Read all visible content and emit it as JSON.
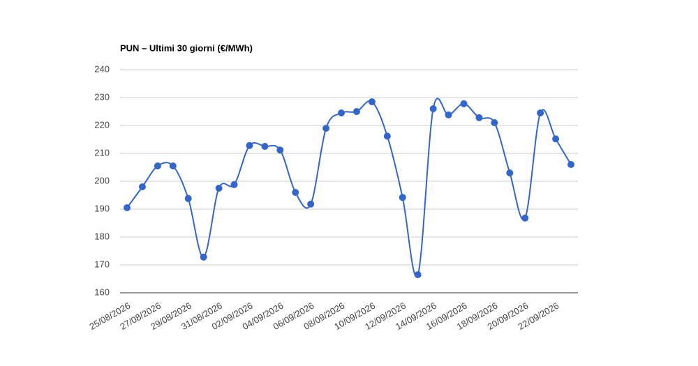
{
  "chart_data": {
    "type": "line",
    "title": "PUN – Ultimi 30 giorni (€/MWh)",
    "categories": [
      "25/08/2026",
      null,
      "27/08/2026",
      null,
      "29/08/2026",
      null,
      "31/08/2026",
      null,
      "02/09/2026",
      null,
      "04/09/2026",
      null,
      "06/09/2026",
      null,
      "08/09/2026",
      null,
      "10/09/2026",
      null,
      "12/09/2026",
      null,
      "14/09/2026",
      null,
      "16/09/2026",
      null,
      "18/09/2026",
      null,
      "20/09/2026",
      null,
      "22/09/2026",
      null
    ],
    "series": [
      {
        "name": "PUN",
        "color": "#3366cc",
        "values": [
          190.5,
          198,
          205.5,
          205.5,
          193.8,
          172.8,
          197.5,
          198.8,
          212.8,
          212.5,
          211.2,
          196,
          191.8,
          219,
          224.5,
          225,
          228.5,
          216.2,
          194.2,
          166.5,
          226,
          223.8,
          227.8,
          222.8,
          221,
          203,
          186.8,
          224.5,
          215.2,
          206
        ]
      }
    ],
    "ylim": [
      160,
      240
    ],
    "yticks": [
      160,
      170,
      180,
      190,
      200,
      210,
      220,
      230,
      240
    ],
    "grid": true,
    "smooth": true,
    "markers": true
  }
}
